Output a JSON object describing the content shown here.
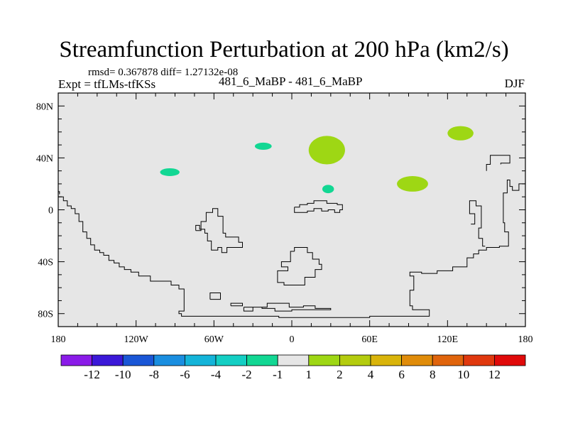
{
  "chart_data": {
    "type": "heatmap",
    "title": "Streamfunction Perturbation at 200 hPa (km2/s)",
    "stats": "rmsd= 0.367878 diff= 1.27132e-08",
    "left_label": "Expt = tfLMs-tfKSs",
    "center_label": "481_6_MaBP - 481_6_MaBP",
    "right_label": "DJF",
    "xlim": [
      -180,
      180
    ],
    "ylim": [
      -90,
      90
    ],
    "x_ticks": [
      {
        "value": -180,
        "label": "180"
      },
      {
        "value": -120,
        "label": "120W"
      },
      {
        "value": -60,
        "label": "60W"
      },
      {
        "value": 0,
        "label": "0"
      },
      {
        "value": 60,
        "label": "60E"
      },
      {
        "value": 120,
        "label": "120E"
      },
      {
        "value": 180,
        "label": "180"
      }
    ],
    "y_ticks": [
      {
        "value": 80,
        "label": "80N"
      },
      {
        "value": 40,
        "label": "40N"
      },
      {
        "value": 0,
        "label": "0"
      },
      {
        "value": -40,
        "label": "40S"
      },
      {
        "value": -80,
        "label": "80S"
      }
    ],
    "background_color": "#e6e6e6",
    "colorbar": {
      "colors": [
        "#8a1be8",
        "#3b18d8",
        "#1a56d6",
        "#1a8ee0",
        "#14b4d9",
        "#14cfc4",
        "#12d793",
        "#e6e6e6",
        "#9ed714",
        "#b4cc0e",
        "#d9b40a",
        "#e08c0a",
        "#e0640c",
        "#e0380e",
        "#e00a0a"
      ],
      "labels": [
        "-12",
        "-10",
        "-8",
        "-6",
        "-4",
        "-2",
        "-1",
        "1",
        "2",
        "4",
        "6",
        "8",
        "10",
        "12"
      ]
    },
    "anomalies": [
      {
        "lon": 27,
        "lat": 46,
        "lon_radius": 14,
        "lat_radius": 11,
        "color": "#9ed714"
      },
      {
        "lon": 93,
        "lat": 20,
        "lon_radius": 12,
        "lat_radius": 6,
        "color": "#9ed714"
      },
      {
        "lon": 130,
        "lat": 59,
        "lon_radius": 10,
        "lat_radius": 5.5,
        "color": "#9ed714"
      },
      {
        "lon": -94,
        "lat": 29,
        "lon_radius": 7.5,
        "lat_radius": 3,
        "color": "#12d793"
      },
      {
        "lon": -22,
        "lat": 49,
        "lon_radius": 6.5,
        "lat_radius": 2.8,
        "color": "#12d793"
      },
      {
        "lon": 28,
        "lat": 16,
        "lon_radius": 4.5,
        "lat_radius": 3.2,
        "color": "#12d793"
      }
    ],
    "coastlines": [
      [
        [
          -180,
          10
        ],
        [
          -176,
          10
        ],
        [
          -176,
          7
        ],
        [
          -173,
          7
        ],
        [
          -173,
          3
        ],
        [
          -170,
          3
        ],
        [
          -170,
          1
        ],
        [
          -167,
          1
        ],
        [
          -167,
          -3
        ],
        [
          -164,
          -3
        ],
        [
          -164,
          -9
        ],
        [
          -161,
          -9
        ],
        [
          -161,
          -17
        ],
        [
          -158,
          -17
        ],
        [
          -158,
          -22
        ],
        [
          -155,
          -22
        ],
        [
          -155,
          -27
        ],
        [
          -152,
          -27
        ],
        [
          -152,
          -31
        ],
        [
          -148,
          -31
        ],
        [
          -148,
          -33
        ],
        [
          -145,
          -33
        ],
        [
          -145,
          -35
        ],
        [
          -141,
          -35
        ],
        [
          -141,
          -39
        ],
        [
          -137,
          -39
        ],
        [
          -137,
          -41
        ],
        [
          -133,
          -41
        ],
        [
          -133,
          -44
        ],
        [
          -129,
          -44
        ],
        [
          -129,
          -46
        ],
        [
          -124,
          -46
        ],
        [
          -124,
          -48
        ],
        [
          -118,
          -48
        ],
        [
          -118,
          -51
        ],
        [
          -109,
          -51
        ],
        [
          -109,
          -55
        ],
        [
          -93,
          -55
        ],
        [
          -93,
          -58
        ],
        [
          -87,
          -58
        ],
        [
          -87,
          -61
        ],
        [
          -83,
          -61
        ],
        [
          -83,
          -78
        ],
        [
          -87,
          -78
        ],
        [
          -87,
          -80
        ],
        [
          -85,
          -80
        ],
        [
          -85,
          -82
        ],
        [
          -10,
          -82
        ],
        [
          -10,
          -83
        ],
        [
          60,
          -83
        ],
        [
          60,
          -82
        ],
        [
          106,
          -82
        ],
        [
          106,
          -77
        ],
        [
          93,
          -77
        ],
        [
          93,
          -74
        ],
        [
          91,
          -74
        ],
        [
          91,
          -62
        ],
        [
          94,
          -62
        ],
        [
          94,
          -51
        ],
        [
          91,
          -51
        ],
        [
          91,
          -48
        ],
        [
          100,
          -48
        ],
        [
          100,
          -49
        ],
        [
          112,
          -49
        ],
        [
          112,
          -47
        ],
        [
          124,
          -47
        ],
        [
          124,
          -44
        ],
        [
          135,
          -44
        ],
        [
          135,
          -37
        ],
        [
          140,
          -37
        ],
        [
          140,
          -34
        ],
        [
          144,
          -34
        ],
        [
          144,
          -31
        ],
        [
          150,
          -31
        ],
        [
          150,
          -29
        ],
        [
          160,
          -29
        ],
        [
          160,
          -28
        ],
        [
          167,
          -28
        ],
        [
          167,
          -17
        ],
        [
          164,
          -17
        ],
        [
          164,
          -10
        ],
        [
          163,
          -10
        ],
        [
          163,
          13
        ],
        [
          166,
          13
        ],
        [
          166,
          23
        ],
        [
          168,
          23
        ],
        [
          168,
          18
        ],
        [
          170,
          18
        ],
        [
          170,
          15
        ],
        [
          175,
          15
        ],
        [
          175,
          20
        ],
        [
          180,
          20
        ]
      ],
      [
        [
          -180,
          14
        ],
        [
          -179,
          14
        ],
        [
          -179,
          12
        ]
      ],
      [
        [
          -74,
          -16
        ],
        [
          -70,
          -16
        ],
        [
          -70,
          -9
        ],
        [
          -66,
          -9
        ],
        [
          -66,
          -2
        ],
        [
          -61,
          -2
        ],
        [
          -61,
          1
        ],
        [
          -57,
          1
        ],
        [
          -57,
          -5
        ],
        [
          -53,
          -5
        ],
        [
          -53,
          -18
        ],
        [
          -51,
          -18
        ],
        [
          -51,
          -21
        ],
        [
          -41,
          -21
        ],
        [
          -41,
          -25
        ],
        [
          -38,
          -25
        ],
        [
          -38,
          -29
        ],
        [
          -50,
          -29
        ],
        [
          -50,
          -33
        ],
        [
          -54,
          -33
        ],
        [
          -54,
          -29
        ],
        [
          -57,
          -29
        ],
        [
          -57,
          -31
        ],
        [
          -62,
          -31
        ],
        [
          -62,
          -24
        ],
        [
          -65,
          -24
        ],
        [
          -65,
          -18
        ],
        [
          -67,
          -18
        ],
        [
          -67,
          -15
        ],
        [
          -71,
          -15
        ],
        [
          -71,
          -12
        ],
        [
          -74,
          -12
        ],
        [
          -74,
          -16
        ]
      ],
      [
        [
          2,
          2
        ],
        [
          2,
          -2
        ],
        [
          12,
          -2
        ],
        [
          12,
          -1
        ],
        [
          17,
          -1
        ],
        [
          17,
          1
        ],
        [
          23,
          1
        ],
        [
          23,
          -1
        ],
        [
          28,
          -1
        ],
        [
          28,
          0
        ],
        [
          33,
          0
        ],
        [
          33,
          -2
        ],
        [
          37,
          -2
        ],
        [
          37,
          0
        ],
        [
          39,
          0
        ],
        [
          39,
          4
        ],
        [
          35,
          4
        ],
        [
          35,
          5
        ],
        [
          27,
          5
        ],
        [
          27,
          7
        ],
        [
          17,
          7
        ],
        [
          17,
          5
        ],
        [
          12,
          5
        ],
        [
          12,
          4
        ],
        [
          6,
          4
        ],
        [
          6,
          2
        ],
        [
          2,
          2
        ]
      ],
      [
        [
          -63,
          -69
        ],
        [
          -55,
          -69
        ],
        [
          -55,
          -64
        ],
        [
          -63,
          -64
        ],
        [
          -63,
          -69
        ]
      ],
      [
        [
          -47,
          -74
        ],
        [
          -38,
          -74
        ],
        [
          -38,
          -72
        ],
        [
          -47,
          -72
        ],
        [
          -47,
          -74
        ]
      ],
      [
        [
          -37,
          -75
        ],
        [
          -23,
          -75
        ],
        [
          -23,
          -76
        ],
        [
          -13,
          -76
        ],
        [
          -13,
          -78
        ],
        [
          0,
          -78
        ],
        [
          0,
          -77
        ],
        [
          30,
          -77
        ],
        [
          30,
          -76
        ],
        [
          18,
          -76
        ],
        [
          18,
          -74
        ],
        [
          9,
          -74
        ],
        [
          9,
          -75
        ],
        [
          -2,
          -75
        ],
        [
          -2,
          -72
        ],
        [
          -19,
          -72
        ],
        [
          -19,
          -75
        ],
        [
          -30,
          -75
        ],
        [
          -30,
          -78
        ],
        [
          -37,
          -78
        ],
        [
          -37,
          -75
        ]
      ],
      [
        [
          2,
          -32
        ],
        [
          2,
          -29
        ],
        [
          12,
          -29
        ],
        [
          12,
          -33
        ],
        [
          16,
          -33
        ],
        [
          16,
          -38
        ],
        [
          21,
          -38
        ],
        [
          21,
          -42
        ],
        [
          23,
          -42
        ],
        [
          23,
          -46
        ],
        [
          18,
          -46
        ],
        [
          18,
          -52
        ],
        [
          10,
          -52
        ],
        [
          10,
          -58
        ],
        [
          -6,
          -58
        ],
        [
          -6,
          -56
        ],
        [
          -11,
          -56
        ],
        [
          -11,
          -47
        ],
        [
          -3,
          -47
        ],
        [
          -3,
          -44
        ],
        [
          -8,
          -44
        ],
        [
          -8,
          -40
        ],
        [
          -1,
          -40
        ],
        [
          -1,
          -32
        ],
        [
          2,
          -32
        ]
      ],
      [
        [
          149,
          -28
        ],
        [
          147,
          -28
        ],
        [
          147,
          -22
        ],
        [
          144,
          -22
        ],
        [
          144,
          -14
        ],
        [
          146,
          -14
        ],
        [
          146,
          3
        ],
        [
          142,
          3
        ],
        [
          142,
          7
        ],
        [
          137,
          7
        ],
        [
          137,
          -3
        ],
        [
          141,
          -3
        ],
        [
          141,
          -11
        ],
        [
          138,
          -11
        ]
      ],
      [
        [
          150,
          30
        ],
        [
          150,
          35
        ],
        [
          153,
          35
        ],
        [
          153,
          42
        ],
        [
          168,
          42
        ],
        [
          168,
          36
        ],
        [
          161,
          36
        ],
        [
          161,
          35
        ]
      ]
    ]
  }
}
